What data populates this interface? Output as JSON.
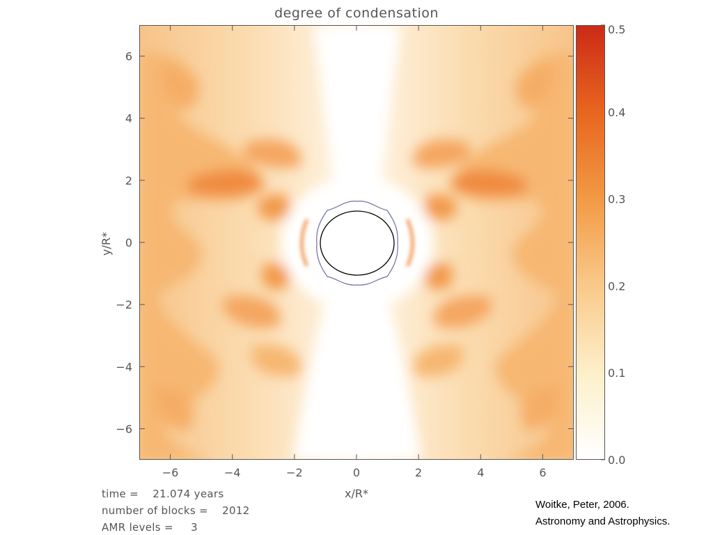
{
  "chart_data": {
    "type": "heatmap",
    "title": "degree of condensation",
    "xlabel": "x/R*",
    "ylabel": "y/R*",
    "xlim": [
      -7,
      7
    ],
    "ylim": [
      -7,
      7
    ],
    "x_ticks": [
      -6,
      -4,
      -2,
      0,
      2,
      4,
      6
    ],
    "y_ticks": [
      6,
      4,
      2,
      0,
      -2,
      -4,
      -6
    ],
    "x_tick_labels": [
      "−6",
      "−4",
      "−2",
      "0",
      "2",
      "4",
      "6"
    ],
    "y_tick_labels": [
      "6",
      "4",
      "2",
      "0",
      "−2",
      "−4",
      "−6"
    ],
    "colorbar": {
      "range": [
        0.0,
        0.5
      ],
      "ticks": [
        0.0,
        0.1,
        0.2,
        0.3,
        0.4,
        0.5
      ],
      "tick_labels": [
        "0.0",
        "0.1",
        "0.2",
        "0.3",
        "0.4",
        "0.5"
      ],
      "colors": [
        "#ffffff",
        "#fdefc9",
        "#f9c98a",
        "#f29a45",
        "#e8661f",
        "#cc2a17"
      ]
    },
    "central_star_radius": 1.0
  },
  "annotations": {
    "time_label": "time =    21.074 years",
    "blocks_label": "number of blocks =    2012",
    "amr_label": "AMR levels =     3"
  },
  "citation": {
    "line1": "Woitke, Peter, 2006.",
    "line2": "Astronomy and Astrophysics."
  }
}
